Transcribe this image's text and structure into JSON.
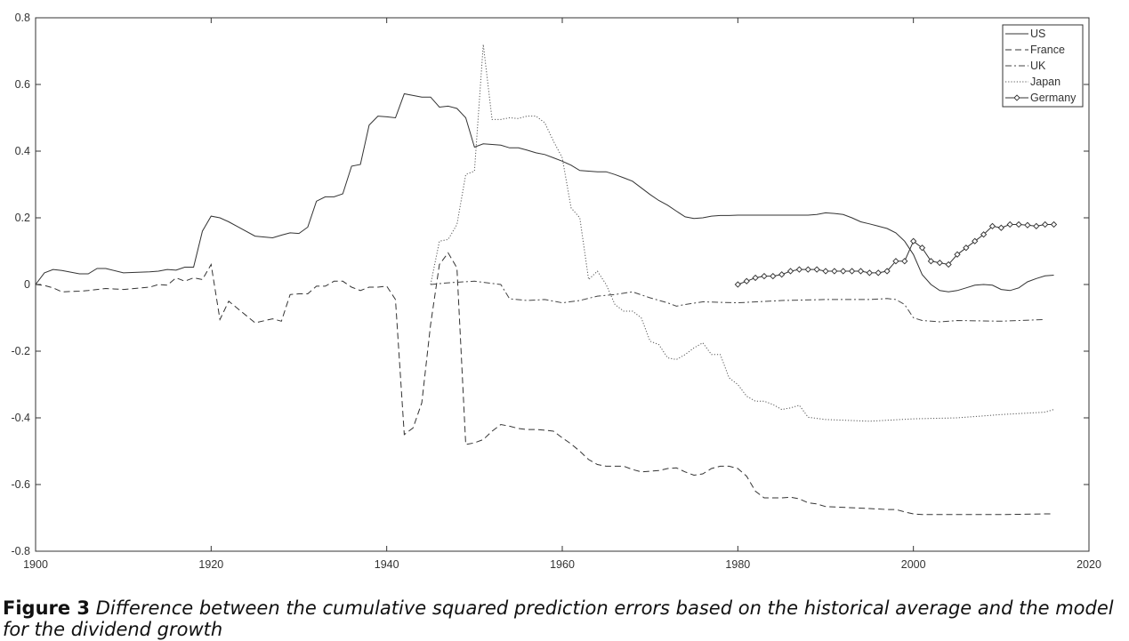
{
  "chart_data": {
    "type": "line",
    "title": "",
    "xlabel": "",
    "ylabel": "",
    "xlim": [
      1900,
      2020
    ],
    "ylim": [
      -0.8,
      0.8
    ],
    "xticks": [
      1900,
      1920,
      1940,
      1960,
      1980,
      2000,
      2020
    ],
    "yticks": [
      0.8,
      0.6,
      0.4,
      0.2,
      0,
      -0.2,
      -0.4,
      -0.6,
      -0.8
    ],
    "xtick_labels": [
      "1900",
      "1920",
      "1940",
      "1960",
      "1980",
      "2000",
      "2020"
    ],
    "ytick_labels": [
      "0.8",
      "0.6",
      "0.4",
      "0.2",
      "0",
      "-0.2",
      "-0.4",
      "-0.6",
      "-0.8"
    ],
    "grid": false,
    "legend_position": "top-right",
    "series": [
      {
        "name": "US",
        "style": "solid",
        "x": [
          1900,
          1901,
          1902,
          1903,
          1905,
          1906,
          1907,
          1908,
          1910,
          1913,
          1914,
          1915,
          1916,
          1917,
          1918,
          1919,
          1920,
          1921,
          1922,
          1925,
          1927,
          1928,
          1929,
          1930,
          1931,
          1932,
          1933,
          1934,
          1935,
          1936,
          1937,
          1938,
          1939,
          1940,
          1941,
          1942,
          1943,
          1944,
          1945,
          1946,
          1947,
          1948,
          1949,
          1950,
          1951,
          1952,
          1953,
          1954,
          1955,
          1956,
          1957,
          1958,
          1959,
          1960,
          1961,
          1962,
          1963,
          1964,
          1965,
          1966,
          1967,
          1968,
          1969,
          1970,
          1971,
          1972,
          1973,
          1974,
          1975,
          1976,
          1977,
          1978,
          1979,
          1980,
          1985,
          1987,
          1988,
          1989,
          1990,
          1991,
          1992,
          1993,
          1994,
          1995,
          1996,
          1997,
          1998,
          1999,
          2000,
          2001,
          2002,
          2003,
          2004,
          2005,
          2006,
          2007,
          2008,
          2009,
          2010,
          2011,
          2012,
          2013,
          2014,
          2015,
          2016
        ],
        "values": [
          0.0,
          0.035,
          0.045,
          0.042,
          0.032,
          0.032,
          0.048,
          0.048,
          0.035,
          0.038,
          0.04,
          0.045,
          0.043,
          0.052,
          0.052,
          0.16,
          0.205,
          0.2,
          0.188,
          0.145,
          0.14,
          0.148,
          0.155,
          0.153,
          0.172,
          0.25,
          0.263,
          0.263,
          0.272,
          0.355,
          0.36,
          0.478,
          0.505,
          0.503,
          0.5,
          0.572,
          0.567,
          0.562,
          0.562,
          0.532,
          0.535,
          0.528,
          0.5,
          0.412,
          0.422,
          0.42,
          0.418,
          0.41,
          0.41,
          0.403,
          0.395,
          0.39,
          0.38,
          0.37,
          0.358,
          0.342,
          0.34,
          0.338,
          0.338,
          0.33,
          0.32,
          0.31,
          0.29,
          0.27,
          0.252,
          0.238,
          0.22,
          0.203,
          0.198,
          0.2,
          0.205,
          0.207,
          0.207,
          0.208,
          0.208,
          0.208,
          0.208,
          0.21,
          0.215,
          0.213,
          0.21,
          0.2,
          0.188,
          0.182,
          0.175,
          0.168,
          0.155,
          0.13,
          0.09,
          0.03,
          0.0,
          -0.018,
          -0.022,
          -0.018,
          -0.01,
          -0.002,
          0.0,
          -0.002,
          -0.015,
          -0.018,
          -0.01,
          0.008,
          0.018,
          0.026,
          0.028
        ]
      },
      {
        "name": "France",
        "style": "dashed",
        "x": [
          1900,
          1901,
          1902,
          1903,
          1905,
          1906,
          1907,
          1908,
          1910,
          1913,
          1914,
          1915,
          1916,
          1917,
          1918,
          1919,
          1920,
          1921,
          1922,
          1925,
          1927,
          1928,
          1929,
          1930,
          1931,
          1932,
          1933,
          1934,
          1935,
          1936,
          1937,
          1938,
          1939,
          1940,
          1941,
          1942,
          1943,
          1944,
          1945,
          1946,
          1947,
          1948,
          1949,
          1950,
          1951,
          1952,
          1953,
          1954,
          1955,
          1956,
          1957,
          1958,
          1959,
          1960,
          1961,
          1962,
          1963,
          1964,
          1965,
          1966,
          1967,
          1968,
          1969,
          1970,
          1971,
          1972,
          1973,
          1974,
          1975,
          1976,
          1977,
          1978,
          1979,
          1980,
          1981,
          1982,
          1983,
          1984,
          1985,
          1986,
          1987,
          1988,
          1989,
          1990,
          1995,
          1997,
          1998,
          1999,
          2000,
          2001,
          2002,
          2005,
          2010,
          2015,
          2016
        ],
        "values": [
          0.0,
          -0.003,
          -0.01,
          -0.022,
          -0.02,
          -0.018,
          -0.015,
          -0.012,
          -0.015,
          -0.008,
          0.0,
          -0.002,
          0.02,
          0.01,
          0.02,
          0.015,
          0.06,
          -0.105,
          -0.05,
          -0.115,
          -0.103,
          -0.11,
          -0.03,
          -0.028,
          -0.028,
          -0.005,
          -0.005,
          0.01,
          0.01,
          -0.008,
          -0.018,
          -0.008,
          -0.008,
          -0.005,
          -0.045,
          -0.45,
          -0.43,
          -0.355,
          -0.12,
          0.06,
          0.095,
          0.05,
          -0.48,
          -0.475,
          -0.465,
          -0.44,
          -0.42,
          -0.425,
          -0.432,
          -0.435,
          -0.435,
          -0.437,
          -0.44,
          -0.46,
          -0.478,
          -0.5,
          -0.525,
          -0.54,
          -0.545,
          -0.545,
          -0.545,
          -0.555,
          -0.562,
          -0.56,
          -0.558,
          -0.552,
          -0.55,
          -0.562,
          -0.572,
          -0.568,
          -0.552,
          -0.545,
          -0.545,
          -0.552,
          -0.575,
          -0.62,
          -0.64,
          -0.64,
          -0.64,
          -0.638,
          -0.643,
          -0.655,
          -0.658,
          -0.666,
          -0.672,
          -0.675,
          -0.675,
          -0.682,
          -0.688,
          -0.69,
          -0.69,
          -0.69,
          -0.69,
          -0.688,
          -0.688
        ]
      },
      {
        "name": "UK",
        "style": "dashdot",
        "x": [
          1945,
          1947,
          1950,
          1953,
          1954,
          1956,
          1958,
          1960,
          1962,
          1964,
          1966,
          1968,
          1970,
          1972,
          1973,
          1974,
          1976,
          1980,
          1985,
          1990,
          1995,
          1997,
          1998,
          1999,
          2000,
          2001,
          2003,
          2005,
          2010,
          2015
        ],
        "values": [
          0.0,
          0.005,
          0.01,
          0.0,
          -0.043,
          -0.048,
          -0.045,
          -0.055,
          -0.048,
          -0.035,
          -0.03,
          -0.022,
          -0.04,
          -0.055,
          -0.065,
          -0.06,
          -0.052,
          -0.055,
          -0.048,
          -0.045,
          -0.045,
          -0.042,
          -0.045,
          -0.06,
          -0.1,
          -0.108,
          -0.112,
          -0.108,
          -0.11,
          -0.105
        ]
      },
      {
        "name": "Japan",
        "style": "dotted",
        "x": [
          1945,
          1946,
          1947,
          1948,
          1949,
          1950,
          1951,
          1952,
          1953,
          1954,
          1955,
          1956,
          1957,
          1958,
          1959,
          1960,
          1961,
          1962,
          1963,
          1964,
          1965,
          1966,
          1967,
          1968,
          1969,
          1970,
          1971,
          1972,
          1973,
          1974,
          1975,
          1976,
          1977,
          1978,
          1979,
          1980,
          1981,
          1982,
          1983,
          1984,
          1985,
          1986,
          1987,
          1988,
          1990,
          1995,
          2000,
          2005,
          2010,
          2015,
          2016
        ],
        "values": [
          0.0,
          0.13,
          0.135,
          0.18,
          0.33,
          0.34,
          0.72,
          0.495,
          0.495,
          0.5,
          0.498,
          0.505,
          0.505,
          0.485,
          0.43,
          0.38,
          0.23,
          0.2,
          0.015,
          0.04,
          0.0,
          -0.06,
          -0.08,
          -0.08,
          -0.1,
          -0.17,
          -0.18,
          -0.22,
          -0.225,
          -0.21,
          -0.19,
          -0.175,
          -0.21,
          -0.21,
          -0.28,
          -0.3,
          -0.335,
          -0.35,
          -0.35,
          -0.36,
          -0.375,
          -0.37,
          -0.362,
          -0.398,
          -0.405,
          -0.41,
          -0.403,
          -0.4,
          -0.39,
          -0.383,
          -0.375
        ]
      },
      {
        "name": "Germany",
        "style": "solid-diamond",
        "x": [
          1980,
          1981,
          1982,
          1983,
          1984,
          1985,
          1986,
          1987,
          1988,
          1989,
          1990,
          1991,
          1992,
          1993,
          1994,
          1995,
          1996,
          1997,
          1998,
          1999,
          2000,
          2001,
          2002,
          2003,
          2004,
          2005,
          2006,
          2007,
          2008,
          2009,
          2010,
          2011,
          2012,
          2013,
          2014,
          2015,
          2016
        ],
        "values": [
          0.0,
          0.01,
          0.02,
          0.025,
          0.025,
          0.03,
          0.04,
          0.045,
          0.045,
          0.045,
          0.04,
          0.04,
          0.04,
          0.04,
          0.04,
          0.035,
          0.035,
          0.04,
          0.07,
          0.07,
          0.13,
          0.11,
          0.07,
          0.065,
          0.06,
          0.09,
          0.11,
          0.13,
          0.15,
          0.175,
          0.17,
          0.18,
          0.18,
          0.178,
          0.175,
          0.18,
          0.18
        ]
      }
    ]
  },
  "caption": {
    "label": "Figure 3",
    "text": "Difference between the cumulative squared prediction errors based on the historical average and the model for the dividend growth"
  }
}
